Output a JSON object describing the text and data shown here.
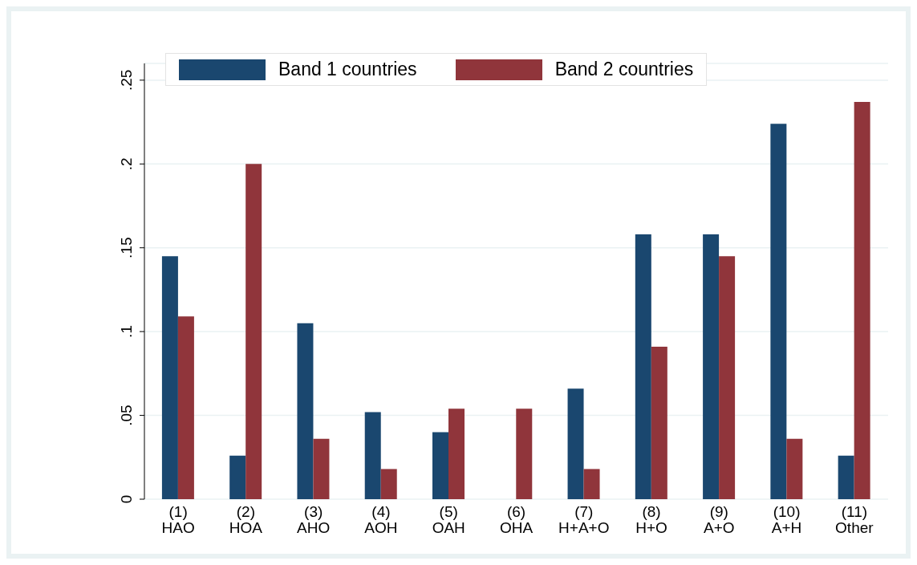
{
  "chart_data": {
    "type": "bar",
    "categories": [
      "(1)\nHAO",
      "(2)\nHOA",
      "(3)\nAHO",
      "(4)\nAOH",
      "(5)\nOAH",
      "(6)\nOHA",
      "(7)\nH+A+O",
      "(8)\nH+O",
      "(9)\nA+O",
      "(10)\nA+H",
      "(11)\nOther"
    ],
    "series": [
      {
        "name": "Band 1 countries",
        "color": "#1a476f",
        "values": [
          0.145,
          0.026,
          0.105,
          0.052,
          0.04,
          0,
          0.066,
          0.158,
          0.158,
          0.224,
          0.026
        ]
      },
      {
        "name": "Band 2 countries",
        "color": "#90353b",
        "values": [
          0.109,
          0.2,
          0.036,
          0.018,
          0.054,
          0.054,
          0.018,
          0.091,
          0.145,
          0.036,
          0.237
        ]
      }
    ],
    "ylim": [
      0,
      0.26
    ],
    "yticks": [
      0,
      {
        "value": 0.05,
        "label": ".05"
      },
      {
        "value": 0.1,
        "label": ".1"
      },
      {
        "value": 0.15,
        "label": ".15"
      },
      {
        "value": 0.2,
        "label": ".2"
      },
      {
        "value": 0.25,
        "label": ".25"
      }
    ],
    "grid": "y",
    "legend": "top"
  }
}
